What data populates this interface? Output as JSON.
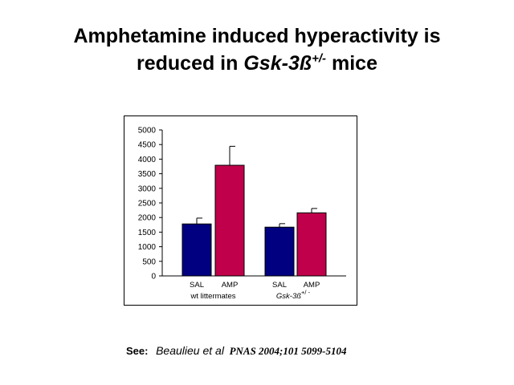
{
  "title": {
    "line1": "Amphetamine induced hyperactivity is",
    "line2_prefix": "reduced in ",
    "line2_gene": "Gsk-3ß",
    "line2_sup": "+/-",
    "line2_suffix": " mice"
  },
  "chart_data": {
    "type": "bar",
    "ylim": [
      0,
      5000
    ],
    "yticks": [
      0,
      500,
      1000,
      1500,
      2000,
      2500,
      3000,
      3500,
      4000,
      4500,
      5000
    ],
    "groups": [
      {
        "label": "wt littermates",
        "bars": [
          {
            "category": "SAL",
            "value": 1780,
            "error": 200,
            "color": "#000080"
          },
          {
            "category": "AMP",
            "value": 3790,
            "error": 650,
            "color": "#c0004a"
          }
        ]
      },
      {
        "label_gene": "Gsk-3ß",
        "label_sup": "+/ -",
        "bars": [
          {
            "category": "SAL",
            "value": 1670,
            "error": 120,
            "color": "#000080"
          },
          {
            "category": "AMP",
            "value": 2160,
            "error": 150,
            "color": "#c0004a"
          }
        ]
      }
    ],
    "grid": false,
    "legend": "none"
  },
  "citation": {
    "see": "See:",
    "authors": "Beaulieu et al",
    "journal": "PNAS 2004;101 5099-5104"
  }
}
